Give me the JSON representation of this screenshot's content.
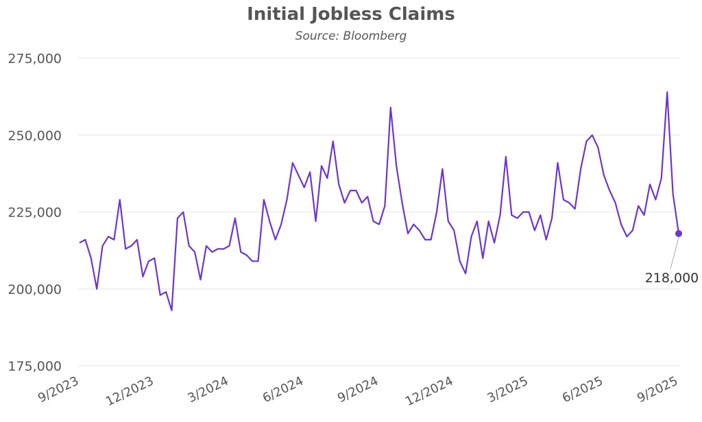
{
  "chart_data": {
    "type": "line",
    "title": "Initial Jobless Claims",
    "subtitle": "Source: Bloomberg",
    "xlabel": "",
    "ylabel": "",
    "ylim": [
      175000,
      275000
    ],
    "y_ticks": [
      275000,
      250000,
      225000,
      200000,
      175000
    ],
    "y_tick_labels": [
      "275,000",
      "250,000",
      "225,000",
      "200,000",
      "175,000"
    ],
    "x_tick_labels": [
      "9/2023",
      "12/2023",
      "3/2024",
      "6/2024",
      "9/2024",
      "12/2024",
      "3/2025",
      "6/2025",
      "9/2025"
    ],
    "grid": true,
    "color": "#6a35d1",
    "series": [
      {
        "values": [
          215000,
          216000,
          210000,
          200000,
          214000,
          217000,
          216000,
          229000,
          213000,
          214000,
          216000,
          204000,
          209000,
          210000,
          198000,
          199000,
          193000,
          223000,
          225000,
          214000,
          212000,
          203000,
          214000,
          212000,
          213000,
          213000,
          214000,
          223000,
          212000,
          211000,
          209000,
          209000,
          229000,
          222000,
          216000,
          221000,
          229000,
          241000,
          237000,
          233000,
          238000,
          222000,
          240000,
          236000,
          248000,
          234000,
          228000,
          232000,
          232000,
          228000,
          230000,
          222000,
          221000,
          227000,
          259000,
          240000,
          228000,
          218000,
          221000,
          219000,
          216000,
          216000,
          225000,
          239000,
          222000,
          219000,
          209000,
          205000,
          217000,
          222000,
          210000,
          222000,
          215000,
          224000,
          243000,
          224000,
          223000,
          225000,
          225000,
          219000,
          224000,
          216000,
          223000,
          241000,
          229000,
          228000,
          226000,
          239000,
          248000,
          250000,
          246000,
          237000,
          232000,
          228000,
          221000,
          217000,
          219000,
          227000,
          224000,
          234000,
          229000,
          236000,
          264000,
          231000,
          218000
        ]
      }
    ],
    "last_value_label": "218,000"
  }
}
